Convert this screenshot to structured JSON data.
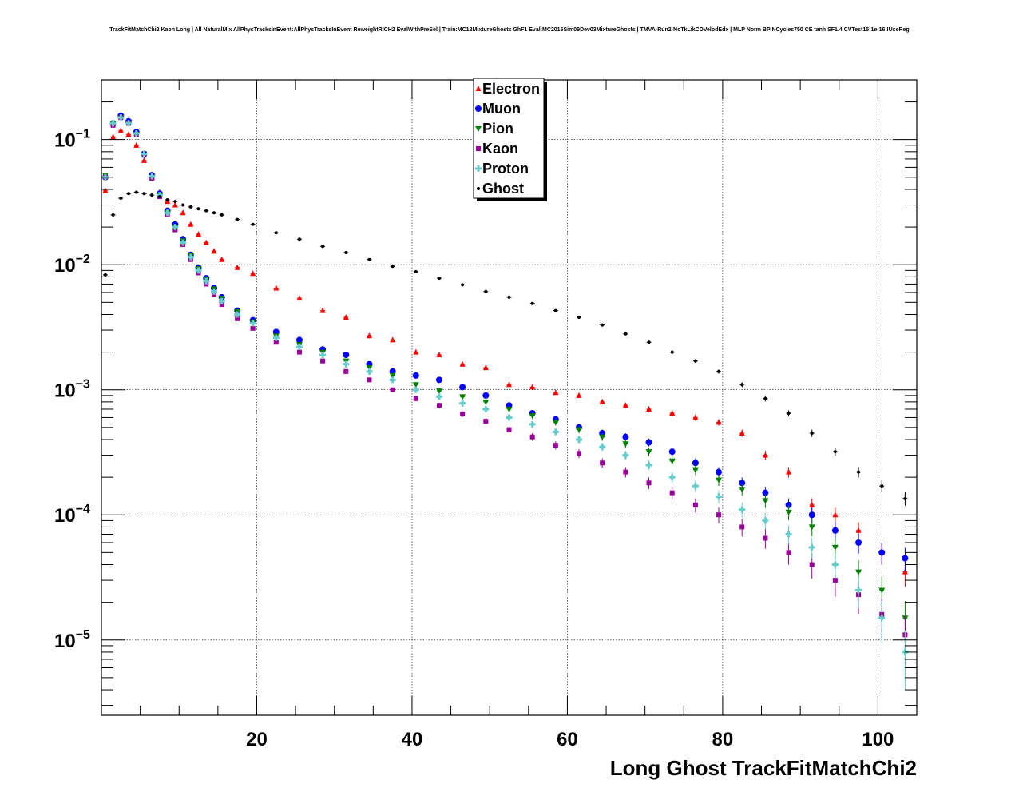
{
  "title": "TrackFitMatchChi2 Kaon Long | All NaturalMix AllPhysTracksInEvent:AllPhysTracksInEvent ReweightRICH2 EvalWithPreSel | Train:MC12MixtureGhosts GhF1 Eval:MC2015Sim09Dev03MixtureGhosts | TMVA-Run2-NoTkLikCDVelodEdx | MLP Norm BP NCycles750 CE tanh SF1.4 CVTest15:1e-16 !UseReg",
  "chart_data": {
    "type": "scatter",
    "title": "TrackFitMatchChi2 Kaon Long | All NaturalMix AllPhysTracksInEvent:AllPhysTracksInEvent ReweightRICH2 EvalWithPreSel | Train:MC12MixtureGhosts GhF1 Eval:MC2015Sim09Dev03MixtureGhosts | TMVA-Run2-NoTkLikCDVelodEdx | MLP Norm BP NCycles750 CE tanh SF1.4 CVTest15:1e-16 !UseReg",
    "xlabel": "Long Ghost TrackFitMatchChi2",
    "ylabel": "",
    "xlim": [
      0,
      105
    ],
    "ylim": [
      2.5e-06,
      0.3
    ],
    "yscale": "log",
    "grid": true,
    "legend_position": "top-center",
    "x_ticks": [
      20,
      40,
      60,
      80,
      100
    ],
    "x_tick_labels": [
      "20",
      "40",
      "60",
      "80",
      "100"
    ],
    "y_ticks": [
      1e-05,
      0.0001,
      0.001,
      0.01,
      0.1
    ],
    "y_tick_labels": [
      {
        "base": "10",
        "exp": "−5"
      },
      {
        "base": "10",
        "exp": "−4"
      },
      {
        "base": "10",
        "exp": "−3"
      },
      {
        "base": "10",
        "exp": "−2"
      },
      {
        "base": "10",
        "exp": "−1"
      }
    ],
    "series": [
      {
        "name": "Electron",
        "color": "#ff0000",
        "marker": "triangle-up",
        "x": [
          0.5,
          1.5,
          2.5,
          3.5,
          4.5,
          5.5,
          6.5,
          7.5,
          8.5,
          9.5,
          10.5,
          11.5,
          12.5,
          13.5,
          14.5,
          15.5,
          17.5,
          19.5,
          22.5,
          25.5,
          28.5,
          31.5,
          34.5,
          37.5,
          40.5,
          43.5,
          46.5,
          49.5,
          52.5,
          55.5,
          58.5,
          61.5,
          64.5,
          67.5,
          70.5,
          73.5,
          76.5,
          79.5,
          82.5,
          85.5,
          88.5,
          91.5,
          94.5,
          97.5,
          100.5,
          103.5
        ],
        "y": [
          0.039,
          0.105,
          0.118,
          0.11,
          0.09,
          0.068,
          0.05,
          0.038,
          0.032,
          0.03,
          0.026,
          0.021,
          0.0175,
          0.015,
          0.0128,
          0.011,
          0.0095,
          0.0085,
          0.0065,
          0.0054,
          0.0043,
          0.0038,
          0.0027,
          0.0025,
          0.002,
          0.0019,
          0.0016,
          0.0015,
          0.0011,
          0.00105,
          0.00095,
          0.0009,
          0.0008,
          0.00075,
          0.0007,
          0.00065,
          0.0006,
          0.00055,
          0.00045,
          0.0003,
          0.00022,
          0.00012,
          0.0001,
          7.5e-05,
          5e-05,
          3.5e-05
        ]
      },
      {
        "name": "Muon",
        "color": "#0000ff",
        "marker": "circle",
        "x": [
          0.5,
          1.5,
          2.5,
          3.5,
          4.5,
          5.5,
          6.5,
          7.5,
          8.5,
          9.5,
          10.5,
          11.5,
          12.5,
          13.5,
          14.5,
          15.5,
          17.5,
          19.5,
          22.5,
          25.5,
          28.5,
          31.5,
          34.5,
          37.5,
          40.5,
          43.5,
          46.5,
          49.5,
          52.5,
          55.5,
          58.5,
          61.5,
          64.5,
          67.5,
          70.5,
          73.5,
          76.5,
          79.5,
          82.5,
          85.5,
          88.5,
          91.5,
          94.5,
          97.5,
          100.5,
          103.5
        ],
        "y": [
          0.05,
          0.135,
          0.155,
          0.14,
          0.115,
          0.077,
          0.052,
          0.037,
          0.027,
          0.021,
          0.016,
          0.012,
          0.0095,
          0.0078,
          0.0065,
          0.0055,
          0.0043,
          0.0036,
          0.0029,
          0.0025,
          0.0021,
          0.0019,
          0.0016,
          0.0014,
          0.0013,
          0.0012,
          0.00105,
          0.0009,
          0.00075,
          0.00065,
          0.00058,
          0.0005,
          0.00045,
          0.00042,
          0.00038,
          0.00032,
          0.00026,
          0.00022,
          0.00018,
          0.00015,
          0.00012,
          0.0001,
          7.5e-05,
          6e-05,
          5e-05,
          4.5e-05
        ]
      },
      {
        "name": "Pion",
        "color": "#008000",
        "marker": "triangle-down",
        "x": [
          0.5,
          1.5,
          2.5,
          3.5,
          4.5,
          5.5,
          6.5,
          7.5,
          8.5,
          9.5,
          10.5,
          11.5,
          12.5,
          13.5,
          14.5,
          15.5,
          17.5,
          19.5,
          22.5,
          25.5,
          28.5,
          31.5,
          34.5,
          37.5,
          40.5,
          43.5,
          46.5,
          49.5,
          52.5,
          55.5,
          58.5,
          61.5,
          64.5,
          67.5,
          70.5,
          73.5,
          76.5,
          79.5,
          82.5,
          85.5,
          88.5,
          91.5,
          94.5,
          97.5,
          100.5,
          103.5
        ],
        "y": [
          0.052,
          0.135,
          0.15,
          0.135,
          0.11,
          0.075,
          0.05,
          0.036,
          0.026,
          0.02,
          0.0155,
          0.0118,
          0.0093,
          0.0077,
          0.0064,
          0.0054,
          0.0042,
          0.0035,
          0.0027,
          0.0023,
          0.002,
          0.0017,
          0.0015,
          0.0013,
          0.0011,
          0.00098,
          0.00088,
          0.0008,
          0.0007,
          0.00062,
          0.00055,
          0.00048,
          0.00042,
          0.00037,
          0.00032,
          0.00027,
          0.00023,
          0.00019,
          0.00016,
          0.00013,
          0.000105,
          8e-05,
          5.5e-05,
          3.5e-05,
          2.5e-05,
          1.5e-05
        ]
      },
      {
        "name": "Kaon",
        "color": "#990099",
        "marker": "square",
        "x": [
          0.5,
          1.5,
          2.5,
          3.5,
          4.5,
          5.5,
          6.5,
          7.5,
          8.5,
          9.5,
          10.5,
          11.5,
          12.5,
          13.5,
          14.5,
          15.5,
          17.5,
          19.5,
          22.5,
          25.5,
          28.5,
          31.5,
          34.5,
          37.5,
          40.5,
          43.5,
          46.5,
          49.5,
          52.5,
          55.5,
          58.5,
          61.5,
          64.5,
          67.5,
          70.5,
          73.5,
          76.5,
          79.5,
          82.5,
          85.5,
          88.5,
          91.5,
          94.5,
          97.5,
          100.5,
          103.5
        ],
        "y": [
          0.05,
          0.13,
          0.15,
          0.135,
          0.11,
          0.075,
          0.049,
          0.035,
          0.025,
          0.019,
          0.0145,
          0.011,
          0.0086,
          0.007,
          0.0058,
          0.0048,
          0.0037,
          0.0031,
          0.0024,
          0.002,
          0.0017,
          0.0014,
          0.0012,
          0.001,
          0.00085,
          0.00075,
          0.00064,
          0.00056,
          0.00048,
          0.00042,
          0.00036,
          0.00031,
          0.00026,
          0.00022,
          0.00018,
          0.00015,
          0.00012,
          0.0001,
          8e-05,
          6.5e-05,
          5e-05,
          4e-05,
          3e-05,
          2.3e-05,
          1.6e-05,
          1.1e-05
        ]
      },
      {
        "name": "Proton",
        "color": "#66cccc",
        "marker": "cross",
        "x": [
          0.5,
          1.5,
          2.5,
          3.5,
          4.5,
          5.5,
          6.5,
          7.5,
          8.5,
          9.5,
          10.5,
          11.5,
          12.5,
          13.5,
          14.5,
          15.5,
          17.5,
          19.5,
          22.5,
          25.5,
          28.5,
          31.5,
          34.5,
          37.5,
          40.5,
          43.5,
          46.5,
          49.5,
          52.5,
          55.5,
          58.5,
          61.5,
          64.5,
          67.5,
          70.5,
          73.5,
          76.5,
          79.5,
          82.5,
          85.5,
          88.5,
          91.5,
          94.5,
          97.5,
          100.5,
          103.5
        ],
        "y": [
          0.05,
          0.135,
          0.15,
          0.135,
          0.112,
          0.077,
          0.051,
          0.036,
          0.026,
          0.02,
          0.015,
          0.0115,
          0.009,
          0.0074,
          0.0061,
          0.0051,
          0.004,
          0.0034,
          0.0026,
          0.0022,
          0.0019,
          0.0016,
          0.0014,
          0.0012,
          0.001,
          0.00088,
          0.00078,
          0.0007,
          0.0006,
          0.00053,
          0.00046,
          0.0004,
          0.00035,
          0.0003,
          0.00025,
          0.0002,
          0.00017,
          0.00014,
          0.00011,
          9e-05,
          7e-05,
          5.5e-05,
          4e-05,
          2.5e-05,
          1.5e-05,
          8e-06
        ]
      },
      {
        "name": "Ghost",
        "color": "#000000",
        "marker": "dot",
        "x": [
          0.5,
          1.5,
          2.5,
          3.5,
          4.5,
          5.5,
          6.5,
          7.5,
          8.5,
          9.5,
          10.5,
          11.5,
          12.5,
          13.5,
          14.5,
          15.5,
          17.5,
          19.5,
          22.5,
          25.5,
          28.5,
          31.5,
          34.5,
          37.5,
          40.5,
          43.5,
          46.5,
          49.5,
          52.5,
          55.5,
          58.5,
          61.5,
          64.5,
          67.5,
          70.5,
          73.5,
          76.5,
          79.5,
          82.5,
          85.5,
          88.5,
          91.5,
          94.5,
          97.5,
          100.5,
          103.5
        ],
        "y": [
          0.0083,
          0.025,
          0.034,
          0.037,
          0.038,
          0.037,
          0.036,
          0.035,
          0.033,
          0.032,
          0.03,
          0.029,
          0.028,
          0.027,
          0.026,
          0.025,
          0.023,
          0.021,
          0.018,
          0.016,
          0.014,
          0.0125,
          0.011,
          0.0097,
          0.0088,
          0.0078,
          0.0069,
          0.0061,
          0.0055,
          0.0049,
          0.0043,
          0.0038,
          0.0033,
          0.0028,
          0.0024,
          0.002,
          0.0017,
          0.0014,
          0.0011,
          0.00085,
          0.00065,
          0.00045,
          0.00032,
          0.00022,
          0.00017,
          0.000135
        ]
      }
    ]
  }
}
